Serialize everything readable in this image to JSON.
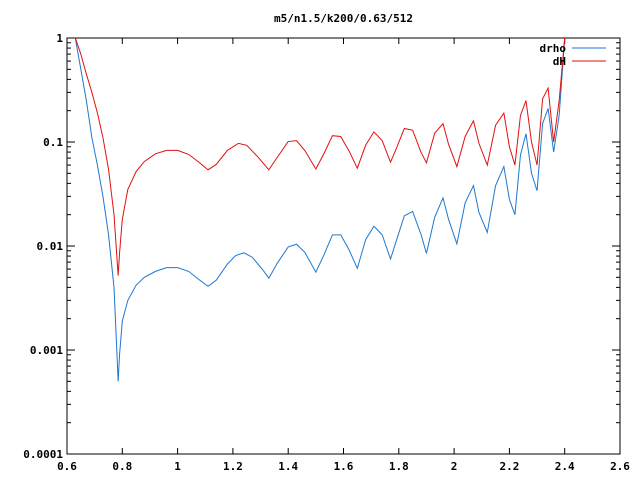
{
  "chart_data": {
    "type": "line",
    "title": "m5/n1.5/k200/0.63/512",
    "xlabel": "",
    "ylabel": "",
    "xlim": [
      0.6,
      2.6
    ],
    "ylim": [
      0.0001,
      1
    ],
    "yscale": "log",
    "grid": false,
    "legend_position": "top-right",
    "x_ticks": [
      0.6,
      0.8,
      1,
      1.2,
      1.4,
      1.6,
      1.8,
      2,
      2.2,
      2.4,
      2.6
    ],
    "x_tick_labels": [
      "0.6",
      "0.8",
      "1",
      "1.2",
      "1.4",
      "1.6",
      "1.8",
      "2",
      "2.2",
      "2.4",
      "2.6"
    ],
    "y_ticks": [
      0.0001,
      0.001,
      0.01,
      0.1,
      1
    ],
    "y_tick_labels": [
      "0.0001",
      "0.001",
      "0.01",
      "0.1",
      "1"
    ],
    "series": [
      {
        "name": "drho",
        "color": "#1f77d0",
        "points": [
          [
            0.63,
            1.0
          ],
          [
            0.65,
            0.5
          ],
          [
            0.67,
            0.25
          ],
          [
            0.69,
            0.11
          ],
          [
            0.71,
            0.06
          ],
          [
            0.73,
            0.03
          ],
          [
            0.75,
            0.013
          ],
          [
            0.77,
            0.004
          ],
          [
            0.785,
            0.0005
          ],
          [
            0.79,
            0.0009
          ],
          [
            0.8,
            0.0019
          ],
          [
            0.82,
            0.003
          ],
          [
            0.85,
            0.0042
          ],
          [
            0.88,
            0.005
          ],
          [
            0.92,
            0.0057
          ],
          [
            0.96,
            0.0062
          ],
          [
            1.0,
            0.0062
          ],
          [
            1.04,
            0.0057
          ],
          [
            1.08,
            0.0047
          ],
          [
            1.11,
            0.0041
          ],
          [
            1.14,
            0.0047
          ],
          [
            1.18,
            0.0067
          ],
          [
            1.21,
            0.0081
          ],
          [
            1.24,
            0.0086
          ],
          [
            1.27,
            0.0078
          ],
          [
            1.31,
            0.0058
          ],
          [
            1.33,
            0.0049
          ],
          [
            1.36,
            0.0068
          ],
          [
            1.4,
            0.0098
          ],
          [
            1.43,
            0.0104
          ],
          [
            1.46,
            0.0087
          ],
          [
            1.5,
            0.0056
          ],
          [
            1.53,
            0.0083
          ],
          [
            1.56,
            0.0128
          ],
          [
            1.59,
            0.0128
          ],
          [
            1.62,
            0.0092
          ],
          [
            1.65,
            0.0061
          ],
          [
            1.68,
            0.0115
          ],
          [
            1.71,
            0.0155
          ],
          [
            1.74,
            0.0128
          ],
          [
            1.77,
            0.0075
          ],
          [
            1.79,
            0.011
          ],
          [
            1.82,
            0.0195
          ],
          [
            1.85,
            0.0215
          ],
          [
            1.88,
            0.013
          ],
          [
            1.9,
            0.0085
          ],
          [
            1.93,
            0.019
          ],
          [
            1.96,
            0.029
          ],
          [
            1.98,
            0.018
          ],
          [
            2.01,
            0.0105
          ],
          [
            2.04,
            0.026
          ],
          [
            2.07,
            0.038
          ],
          [
            2.09,
            0.021
          ],
          [
            2.12,
            0.0135
          ],
          [
            2.15,
            0.038
          ],
          [
            2.18,
            0.058
          ],
          [
            2.2,
            0.028
          ],
          [
            2.22,
            0.02
          ],
          [
            2.24,
            0.075
          ],
          [
            2.26,
            0.12
          ],
          [
            2.28,
            0.05
          ],
          [
            2.3,
            0.034
          ],
          [
            2.32,
            0.15
          ],
          [
            2.34,
            0.21
          ],
          [
            2.36,
            0.08
          ],
          [
            2.38,
            0.18
          ],
          [
            2.4,
            1.0
          ]
        ]
      },
      {
        "name": "dH",
        "color": "#e01010",
        "points": [
          [
            0.63,
            1.0
          ],
          [
            0.65,
            0.7
          ],
          [
            0.67,
            0.45
          ],
          [
            0.69,
            0.3
          ],
          [
            0.71,
            0.19
          ],
          [
            0.73,
            0.11
          ],
          [
            0.75,
            0.055
          ],
          [
            0.77,
            0.02
          ],
          [
            0.785,
            0.0052
          ],
          [
            0.79,
            0.0085
          ],
          [
            0.8,
            0.018
          ],
          [
            0.82,
            0.035
          ],
          [
            0.85,
            0.052
          ],
          [
            0.88,
            0.065
          ],
          [
            0.92,
            0.077
          ],
          [
            0.96,
            0.083
          ],
          [
            1.0,
            0.083
          ],
          [
            1.04,
            0.076
          ],
          [
            1.08,
            0.063
          ],
          [
            1.11,
            0.054
          ],
          [
            1.14,
            0.061
          ],
          [
            1.18,
            0.083
          ],
          [
            1.22,
            0.097
          ],
          [
            1.25,
            0.093
          ],
          [
            1.29,
            0.072
          ],
          [
            1.33,
            0.054
          ],
          [
            1.36,
            0.071
          ],
          [
            1.4,
            0.101
          ],
          [
            1.43,
            0.103
          ],
          [
            1.46,
            0.083
          ],
          [
            1.5,
            0.055
          ],
          [
            1.53,
            0.078
          ],
          [
            1.56,
            0.115
          ],
          [
            1.59,
            0.113
          ],
          [
            1.62,
            0.082
          ],
          [
            1.65,
            0.056
          ],
          [
            1.68,
            0.093
          ],
          [
            1.71,
            0.125
          ],
          [
            1.74,
            0.103
          ],
          [
            1.77,
            0.064
          ],
          [
            1.79,
            0.085
          ],
          [
            1.82,
            0.135
          ],
          [
            1.85,
            0.13
          ],
          [
            1.88,
            0.08
          ],
          [
            1.9,
            0.063
          ],
          [
            1.93,
            0.122
          ],
          [
            1.96,
            0.15
          ],
          [
            1.98,
            0.095
          ],
          [
            2.01,
            0.058
          ],
          [
            2.04,
            0.113
          ],
          [
            2.07,
            0.16
          ],
          [
            2.09,
            0.097
          ],
          [
            2.12,
            0.06
          ],
          [
            2.15,
            0.145
          ],
          [
            2.18,
            0.19
          ],
          [
            2.2,
            0.09
          ],
          [
            2.22,
            0.06
          ],
          [
            2.24,
            0.18
          ],
          [
            2.26,
            0.25
          ],
          [
            2.28,
            0.1
          ],
          [
            2.3,
            0.06
          ],
          [
            2.32,
            0.26
          ],
          [
            2.34,
            0.33
          ],
          [
            2.36,
            0.1
          ],
          [
            2.38,
            0.25
          ],
          [
            2.4,
            1.0
          ]
        ]
      }
    ]
  }
}
